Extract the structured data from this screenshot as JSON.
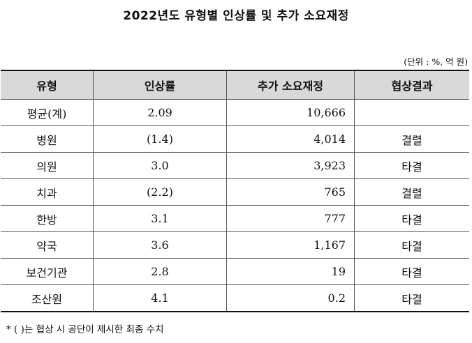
{
  "title": "2022년도 유형별 인상률 및 추가 소요재정",
  "unit": "(단위 : %, 억 원)",
  "table": {
    "headers": [
      "유형",
      "인상률",
      "추가 소요재정",
      "협상결과"
    ],
    "rows": [
      {
        "type": "평균(계)",
        "rate": "2.09",
        "cost": "10,666",
        "result": ""
      },
      {
        "type": "병원",
        "rate": "(1.4)",
        "cost": "4,014",
        "result": "결렬"
      },
      {
        "type": "의원",
        "rate": "3.0",
        "cost": "3,923",
        "result": "타결"
      },
      {
        "type": "치과",
        "rate": "(2.2)",
        "cost": "765",
        "result": "결렬"
      },
      {
        "type": "한방",
        "rate": "3.1",
        "cost": "777",
        "result": "타결"
      },
      {
        "type": "약국",
        "rate": "3.6",
        "cost": "1,167",
        "result": "타결"
      },
      {
        "type": "보건기관",
        "rate": "2.8",
        "cost": "19",
        "result": "타결"
      },
      {
        "type": "조산원",
        "rate": "4.1",
        "cost": "0.2",
        "result": "타결"
      }
    ]
  },
  "footnote": "* (  )는 협상 시 공단이 제시한 최종 수치"
}
